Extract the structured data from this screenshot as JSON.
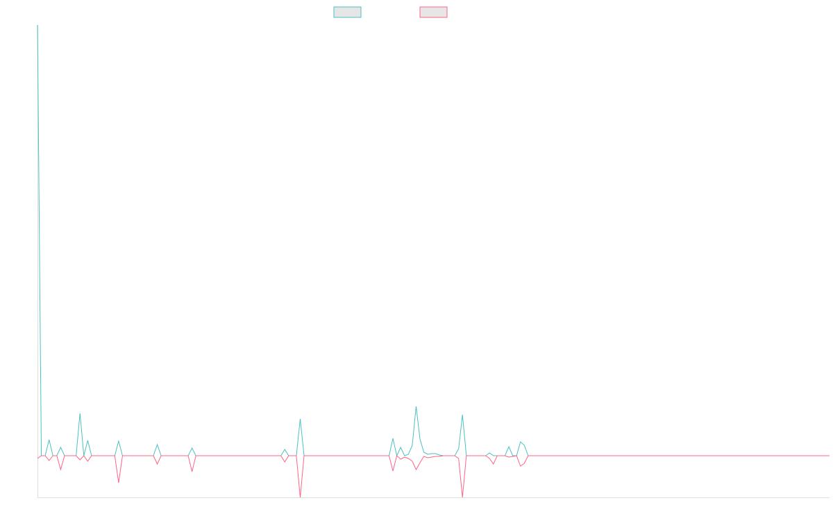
{
  "chart_data": {
    "type": "line",
    "ylim": [
      -60,
      620
    ],
    "series": [
      {
        "color": "#4bc0c0",
        "values": [
          620,
          0,
          0,
          23,
          0,
          0,
          12,
          0,
          0,
          0,
          0,
          61,
          0,
          22,
          0,
          0,
          0,
          0,
          0,
          0,
          0,
          21,
          0,
          0,
          0,
          0,
          0,
          0,
          0,
          0,
          0,
          16,
          0,
          0,
          0,
          0,
          0,
          0,
          0,
          0,
          11,
          0,
          0,
          0,
          0,
          0,
          0,
          0,
          0,
          0,
          0,
          0,
          0,
          0,
          0,
          0,
          0,
          0,
          0,
          0,
          0,
          0,
          0,
          0,
          9,
          0,
          0,
          0,
          53,
          0,
          0,
          0,
          0,
          0,
          0,
          0,
          0,
          0,
          0,
          0,
          0,
          0,
          0,
          0,
          0,
          0,
          0,
          0,
          0,
          0,
          0,
          0,
          25,
          0,
          12,
          0,
          2,
          15,
          71,
          24,
          5,
          2,
          3,
          3,
          1,
          0,
          0,
          0,
          0,
          10,
          59,
          0,
          0,
          0,
          0,
          0,
          0,
          4,
          0,
          0,
          0,
          0,
          13,
          0,
          0,
          20,
          15,
          0,
          0,
          0,
          0,
          0,
          0,
          0,
          0,
          0,
          0,
          0,
          0,
          0,
          0,
          0,
          0,
          0,
          0,
          0,
          0,
          0,
          0,
          0,
          0,
          0,
          0,
          0,
          0,
          0,
          0,
          0,
          0,
          0,
          0,
          0,
          0,
          0,
          0,
          0,
          0,
          0,
          0,
          0,
          0,
          0,
          0,
          0,
          0,
          0,
          0,
          0,
          0,
          0,
          0,
          0,
          0,
          0,
          0,
          0,
          0,
          0,
          0,
          0,
          0,
          0,
          0,
          0,
          0,
          0,
          0,
          0,
          0,
          0,
          0,
          0,
          0,
          0,
          0,
          0
        ]
      },
      {
        "color": "#ff6384",
        "values": [
          -4,
          0,
          0,
          -7,
          0,
          0,
          -20,
          0,
          0,
          0,
          0,
          -6,
          0,
          -8,
          0,
          0,
          0,
          0,
          0,
          0,
          0,
          -39,
          0,
          0,
          0,
          0,
          0,
          0,
          0,
          0,
          0,
          -12,
          0,
          0,
          0,
          0,
          0,
          0,
          0,
          0,
          -23,
          0,
          0,
          0,
          0,
          0,
          0,
          0,
          0,
          0,
          0,
          0,
          0,
          0,
          0,
          0,
          0,
          0,
          0,
          0,
          0,
          0,
          0,
          0,
          -9,
          0,
          0,
          0,
          -60,
          0,
          0,
          0,
          0,
          0,
          0,
          0,
          0,
          0,
          0,
          0,
          0,
          0,
          0,
          0,
          0,
          0,
          0,
          0,
          0,
          0,
          0,
          0,
          -22,
          0,
          -5,
          -2,
          -4,
          -8,
          -20,
          -10,
          -1,
          -3,
          -2,
          -1,
          -1,
          0,
          0,
          0,
          0,
          -4,
          -60,
          0,
          0,
          0,
          0,
          0,
          0,
          -4,
          -12,
          0,
          0,
          0,
          -2,
          -1,
          0,
          -15,
          -11,
          0,
          0,
          0,
          0,
          0,
          0,
          0,
          0,
          0,
          0,
          0,
          0,
          0,
          0,
          0,
          0,
          0,
          0,
          0,
          0,
          0,
          0,
          0,
          0,
          0,
          0,
          0,
          0,
          0,
          0,
          0,
          0,
          0,
          0,
          0,
          0,
          0,
          0,
          0,
          0,
          0,
          0,
          0,
          0,
          0,
          0,
          0,
          0,
          0,
          0,
          0,
          0,
          0,
          0,
          0,
          0,
          0,
          0,
          0,
          0,
          0,
          0,
          0,
          0,
          0,
          0,
          0,
          0,
          0,
          0,
          0,
          0,
          0,
          0,
          0,
          0,
          0,
          0,
          0
        ]
      }
    ]
  }
}
